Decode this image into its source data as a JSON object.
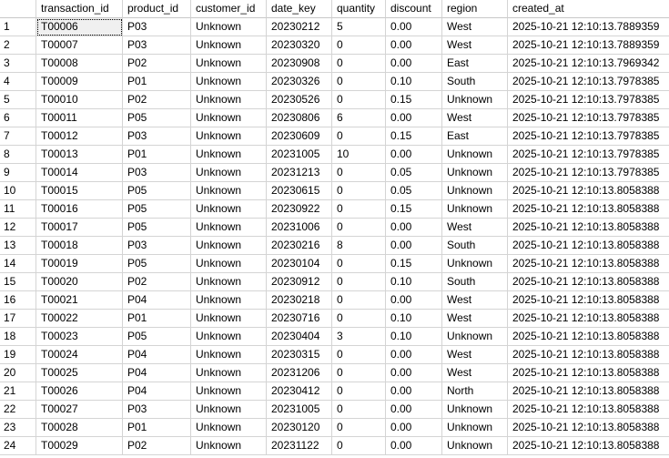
{
  "columns": [
    "transaction_id",
    "product_id",
    "customer_id",
    "date_key",
    "quantity",
    "discount",
    "region",
    "created_at"
  ],
  "rows": [
    {
      "n": "1",
      "cells": [
        "T00006",
        "P03",
        "Unknown",
        "20230212",
        "5",
        "0.00",
        "West",
        "2025-10-21 12:10:13.7889359"
      ]
    },
    {
      "n": "2",
      "cells": [
        "T00007",
        "P03",
        "Unknown",
        "20230320",
        "0",
        "0.00",
        "West",
        "2025-10-21 12:10:13.7889359"
      ]
    },
    {
      "n": "3",
      "cells": [
        "T00008",
        "P02",
        "Unknown",
        "20230908",
        "0",
        "0.00",
        "East",
        "2025-10-21 12:10:13.7969342"
      ]
    },
    {
      "n": "4",
      "cells": [
        "T00009",
        "P01",
        "Unknown",
        "20230326",
        "0",
        "0.10",
        "South",
        "2025-10-21 12:10:13.7978385"
      ]
    },
    {
      "n": "5",
      "cells": [
        "T00010",
        "P02",
        "Unknown",
        "20230526",
        "0",
        "0.15",
        "Unknown",
        "2025-10-21 12:10:13.7978385"
      ]
    },
    {
      "n": "6",
      "cells": [
        "T00011",
        "P05",
        "Unknown",
        "20230806",
        "6",
        "0.00",
        "West",
        "2025-10-21 12:10:13.7978385"
      ]
    },
    {
      "n": "7",
      "cells": [
        "T00012",
        "P03",
        "Unknown",
        "20230609",
        "0",
        "0.15",
        "East",
        "2025-10-21 12:10:13.7978385"
      ]
    },
    {
      "n": "8",
      "cells": [
        "T00013",
        "P01",
        "Unknown",
        "20231005",
        "10",
        "0.00",
        "Unknown",
        "2025-10-21 12:10:13.7978385"
      ]
    },
    {
      "n": "9",
      "cells": [
        "T00014",
        "P03",
        "Unknown",
        "20231213",
        "0",
        "0.05",
        "Unknown",
        "2025-10-21 12:10:13.7978385"
      ]
    },
    {
      "n": "10",
      "cells": [
        "T00015",
        "P05",
        "Unknown",
        "20230615",
        "0",
        "0.05",
        "Unknown",
        "2025-10-21 12:10:13.8058388"
      ]
    },
    {
      "n": "11",
      "cells": [
        "T00016",
        "P05",
        "Unknown",
        "20230922",
        "0",
        "0.15",
        "Unknown",
        "2025-10-21 12:10:13.8058388"
      ]
    },
    {
      "n": "12",
      "cells": [
        "T00017",
        "P05",
        "Unknown",
        "20231006",
        "0",
        "0.00",
        "West",
        "2025-10-21 12:10:13.8058388"
      ]
    },
    {
      "n": "13",
      "cells": [
        "T00018",
        "P03",
        "Unknown",
        "20230216",
        "8",
        "0.00",
        "South",
        "2025-10-21 12:10:13.8058388"
      ]
    },
    {
      "n": "14",
      "cells": [
        "T00019",
        "P05",
        "Unknown",
        "20230104",
        "0",
        "0.15",
        "Unknown",
        "2025-10-21 12:10:13.8058388"
      ]
    },
    {
      "n": "15",
      "cells": [
        "T00020",
        "P02",
        "Unknown",
        "20230912",
        "0",
        "0.10",
        "South",
        "2025-10-21 12:10:13.8058388"
      ]
    },
    {
      "n": "16",
      "cells": [
        "T00021",
        "P04",
        "Unknown",
        "20230218",
        "0",
        "0.00",
        "West",
        "2025-10-21 12:10:13.8058388"
      ]
    },
    {
      "n": "17",
      "cells": [
        "T00022",
        "P01",
        "Unknown",
        "20230716",
        "0",
        "0.10",
        "West",
        "2025-10-21 12:10:13.8058388"
      ]
    },
    {
      "n": "18",
      "cells": [
        "T00023",
        "P05",
        "Unknown",
        "20230404",
        "3",
        "0.10",
        "Unknown",
        "2025-10-21 12:10:13.8058388"
      ]
    },
    {
      "n": "19",
      "cells": [
        "T00024",
        "P04",
        "Unknown",
        "20230315",
        "0",
        "0.00",
        "West",
        "2025-10-21 12:10:13.8058388"
      ]
    },
    {
      "n": "20",
      "cells": [
        "T00025",
        "P04",
        "Unknown",
        "20231206",
        "0",
        "0.00",
        "West",
        "2025-10-21 12:10:13.8058388"
      ]
    },
    {
      "n": "21",
      "cells": [
        "T00026",
        "P04",
        "Unknown",
        "20230412",
        "0",
        "0.00",
        "North",
        "2025-10-21 12:10:13.8058388"
      ]
    },
    {
      "n": "22",
      "cells": [
        "T00027",
        "P03",
        "Unknown",
        "20231005",
        "0",
        "0.00",
        "Unknown",
        "2025-10-21 12:10:13.8058388"
      ]
    },
    {
      "n": "23",
      "cells": [
        "T00028",
        "P01",
        "Unknown",
        "20230120",
        "0",
        "0.00",
        "Unknown",
        "2025-10-21 12:10:13.8058388"
      ]
    },
    {
      "n": "24",
      "cells": [
        "T00029",
        "P02",
        "Unknown",
        "20231122",
        "0",
        "0.00",
        "Unknown",
        "2025-10-21 12:10:13.8058388"
      ]
    }
  ]
}
